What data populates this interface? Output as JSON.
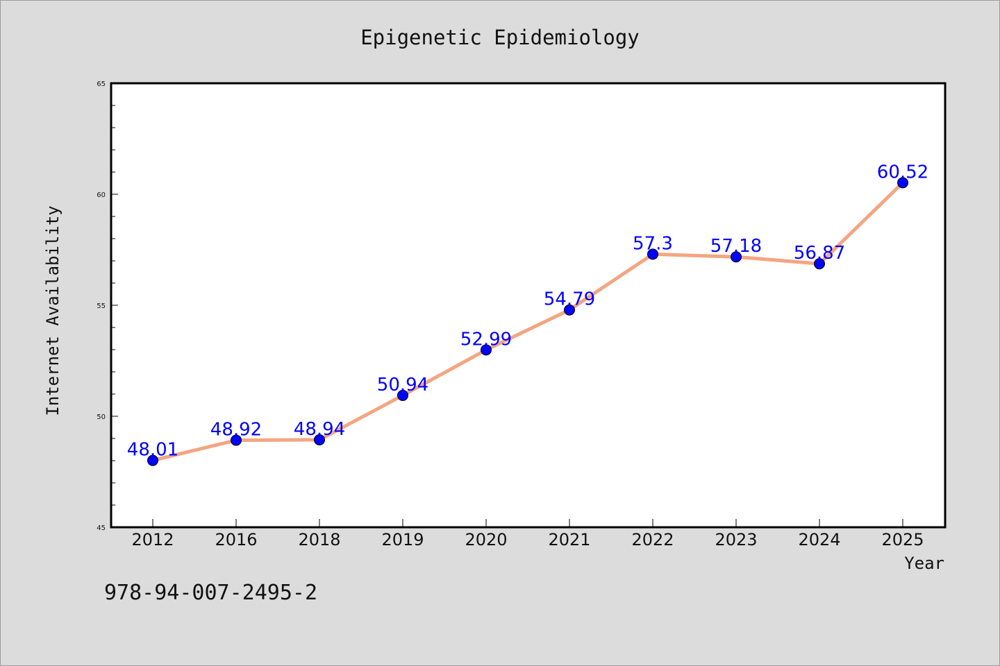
{
  "chart_data": {
    "type": "line",
    "title": "Epigenetic Epidemiology",
    "xlabel": "Year",
    "ylabel": "Internet Availability",
    "categories": [
      "2012",
      "2016",
      "2018",
      "2019",
      "2020",
      "2021",
      "2022",
      "2023",
      "2024",
      "2025"
    ],
    "values": [
      48.01,
      48.92,
      48.94,
      50.94,
      52.99,
      54.79,
      57.3,
      57.18,
      56.87,
      60.52
    ],
    "data_labels": [
      "48.01",
      "48.92",
      "48.94",
      "50.94",
      "52.99",
      "54.79",
      "57.3",
      "57.18",
      "56.87",
      "60.52"
    ],
    "ylim": [
      45,
      65
    ],
    "yticks": [
      "45",
      "50",
      "55",
      "60",
      "65"
    ],
    "grid": false,
    "legend": "none",
    "colors": {
      "line": "#f4a582",
      "marker": "#0000ff",
      "data_label": "#0000ff",
      "background": "#dcdcdc",
      "plot_area": "#ffffff"
    }
  },
  "footer": {
    "isbn": "978-94-007-2495-2"
  }
}
